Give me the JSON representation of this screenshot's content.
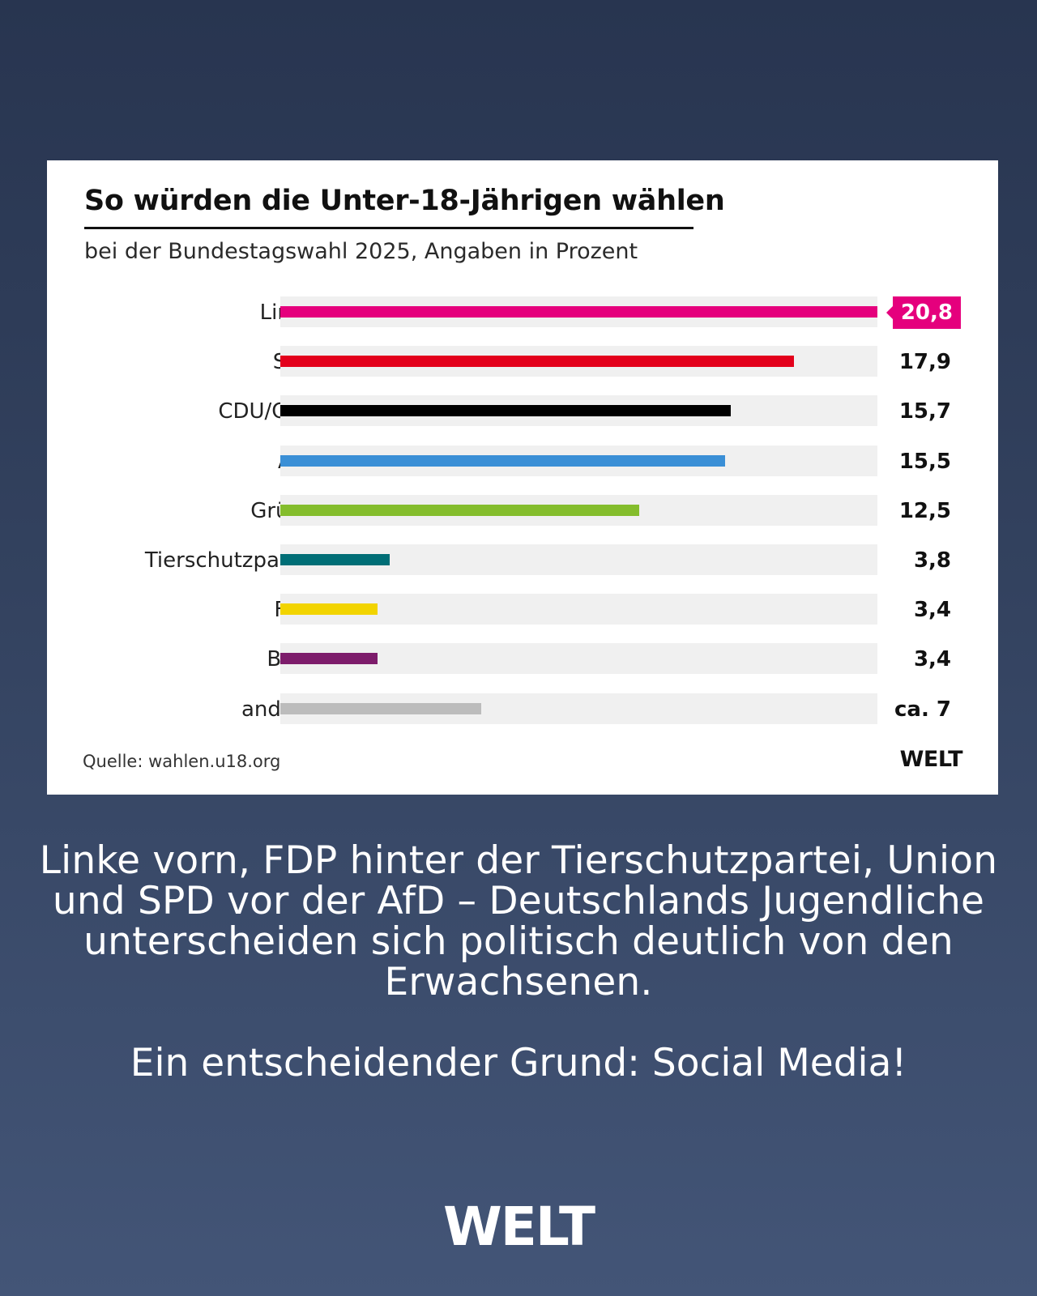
{
  "chart_data": {
    "type": "bar",
    "orientation": "horizontal",
    "title": "So würden die Unter-18-Jährigen wählen",
    "subtitle": "bei der Bundestagswahl 2025, Angaben in Prozent",
    "xlim": [
      0,
      20.8
    ],
    "categories": [
      "Linke",
      "SPD",
      "CDU/CSU",
      "AfD",
      "Grüne",
      "Tierschutzpartei",
      "FDP",
      "BSW",
      "andere"
    ],
    "values": [
      20.8,
      17.9,
      15.7,
      15.5,
      12.5,
      3.8,
      3.4,
      3.4,
      7
    ],
    "value_labels": [
      "20,8",
      "17,9",
      "15,7",
      "15,5",
      "12,5",
      "3,8",
      "3,4",
      "3,4",
      "ca. 7"
    ],
    "colors": [
      "#e5007d",
      "#e3001b",
      "#000000",
      "#3a8fd6",
      "#84bd2c",
      "#006e76",
      "#f2d400",
      "#7d1c6b",
      "#bcbcbc"
    ],
    "highlight_index": 0,
    "source": "Quelle: wahlen.u18.org"
  },
  "card_logo": "WELT",
  "headline": "Linke vorn, FDP hinter der Tierschutzpartei, Union und SPD vor der AfD – Deutschlands Jugendliche unterscheiden sich politisch deutlich von den Erwachsenen.",
  "headline_2": "Ein entscheidender Grund: Social Media!",
  "footer_logo": "WELT"
}
